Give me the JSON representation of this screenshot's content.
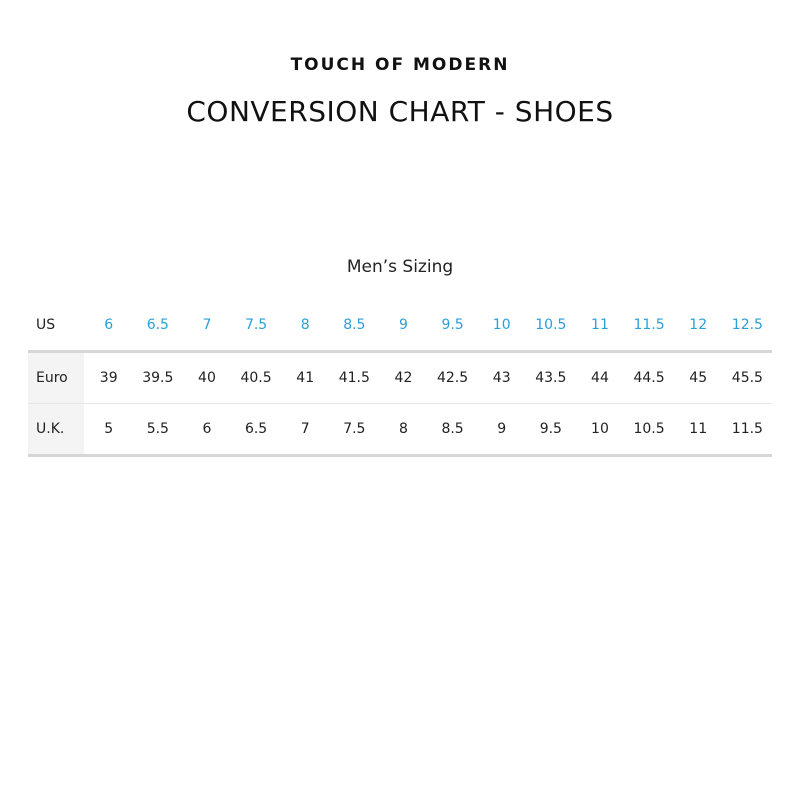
{
  "brand": "TOUCH OF MODERN",
  "title": "CONVERSION CHART - SHOES",
  "subtitle": "Men’s Sizing",
  "colors": {
    "us_values": "#2a9fd8",
    "label_bg": "#f4f4f4",
    "divider": "#d6d6d6"
  },
  "table": {
    "rows": [
      {
        "label": "US",
        "values": [
          "6",
          "6.5",
          "7",
          "7.5",
          "8",
          "8.5",
          "9",
          "9.5",
          "10",
          "10.5",
          "11",
          "11.5",
          "12",
          "12.5"
        ]
      },
      {
        "label": "Euro",
        "values": [
          "39",
          "39.5",
          "40",
          "40.5",
          "41",
          "41.5",
          "42",
          "42.5",
          "43",
          "43.5",
          "44",
          "44.5",
          "45",
          "45.5"
        ]
      },
      {
        "label": "U.K.",
        "values": [
          "5",
          "5.5",
          "6",
          "6.5",
          "7",
          "7.5",
          "8",
          "8.5",
          "9",
          "9.5",
          "10",
          "10.5",
          "11",
          "11.5"
        ]
      }
    ]
  }
}
